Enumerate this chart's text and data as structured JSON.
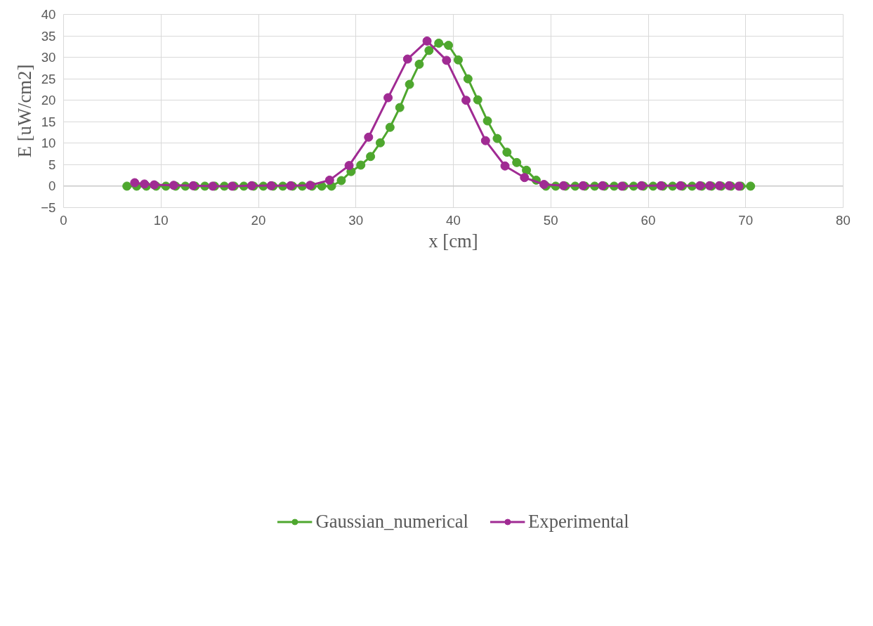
{
  "chart_data": {
    "type": "line",
    "xlabel": "x [cm]",
    "ylabel": "E [uW/cm2]",
    "xlim": [
      0,
      80
    ],
    "xticks": [
      0,
      10,
      20,
      30,
      40,
      50,
      60,
      70,
      80
    ],
    "ylim": [
      -5,
      40
    ],
    "yticks": [
      -5,
      0,
      5,
      10,
      15,
      20,
      25,
      30,
      35,
      40
    ],
    "grid": true,
    "legend": "bottom",
    "marker": "circle",
    "line_style": "solid",
    "series": [
      {
        "name": "Gaussian_numerical",
        "color": "#4ea72e",
        "x": [
          6.5,
          7.5,
          8.5,
          9.5,
          10.5,
          11.5,
          12.5,
          13.5,
          14.5,
          15.5,
          16.5,
          17.5,
          18.5,
          19.5,
          20.5,
          21.5,
          22.5,
          23.5,
          24.5,
          25.5,
          26.5,
          27.5,
          28.5,
          29.5,
          30.5,
          31.5,
          32.5,
          33.5,
          34.5,
          35.5,
          36.5,
          37.5,
          38.5,
          39.5,
          40.5,
          41.5,
          42.5,
          43.5,
          44.5,
          45.5,
          46.5,
          47.5,
          48.5,
          49.5,
          50.5,
          51.5,
          52.5,
          53.5,
          54.5,
          55.5,
          56.5,
          57.5,
          58.5,
          59.5,
          60.5,
          61.5,
          62.5,
          63.5,
          64.5,
          65.5,
          66.5,
          67.5,
          68.5,
          69.5,
          70.5
        ],
        "values": [
          0,
          0,
          0,
          0,
          0,
          0,
          0,
          0,
          0,
          0,
          0,
          0,
          0,
          0,
          0,
          0,
          0,
          0,
          0,
          0,
          0,
          0,
          1.3,
          3.4,
          4.9,
          6.9,
          10.1,
          13.7,
          18.3,
          23.7,
          28.4,
          31.6,
          33.3,
          32.8,
          29.4,
          25.0,
          20.1,
          15.2,
          11.1,
          7.9,
          5.5,
          3.7,
          1.4,
          0,
          0,
          0,
          0,
          0,
          0,
          0,
          0,
          0,
          0,
          0,
          0,
          0,
          0,
          0,
          0,
          0,
          0,
          0,
          0,
          0,
          0
        ]
      },
      {
        "name": "Experimental",
        "color": "#a02b93",
        "x": [
          7.3,
          8.3,
          9.3,
          11.3,
          13.3,
          15.3,
          17.3,
          19.3,
          21.3,
          23.3,
          25.3,
          27.3,
          29.3,
          31.3,
          33.3,
          35.3,
          37.3,
          39.3,
          41.3,
          43.3,
          45.3,
          47.3,
          49.3,
          51.3,
          53.3,
          55.3,
          57.3,
          59.3,
          61.3,
          63.3,
          65.3,
          66.3,
          67.3,
          68.3,
          69.3
        ],
        "values": [
          0.8,
          0.5,
          0.3,
          0.2,
          0.1,
          0,
          0,
          0.1,
          0.1,
          0.1,
          0.2,
          1.4,
          4.8,
          11.4,
          20.6,
          29.6,
          33.8,
          29.3,
          20.0,
          10.6,
          4.7,
          2.0,
          0.4,
          0.1,
          0.1,
          0.1,
          0,
          0.1,
          0.1,
          0.1,
          0.1,
          0.1,
          0.1,
          0.1,
          0
        ]
      }
    ]
  }
}
